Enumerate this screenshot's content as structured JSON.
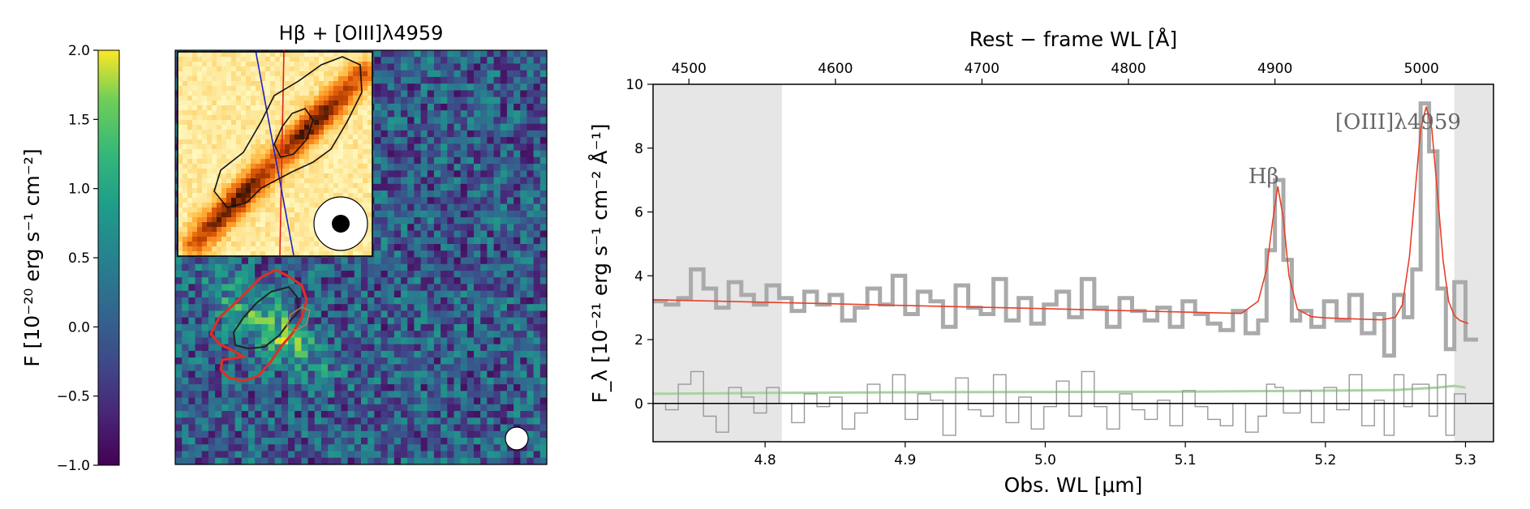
{
  "colorbar": {
    "label": "F [10⁻²⁰ erg s⁻¹ cm⁻²]",
    "range": [
      -1.0,
      2.0
    ],
    "ticks": [
      "2.0",
      "1.5",
      "1.0",
      "0.5",
      "0.0",
      "−0.5",
      "−1.0"
    ],
    "tick_values": [
      2.0,
      1.5,
      1.0,
      0.5,
      0.0,
      -0.5,
      -1.0
    ],
    "colormap": "viridis"
  },
  "map_panel": {
    "title": "Hβ + [OIII]λ4959",
    "inset_colormap": "YlOrBr",
    "contour_colors": {
      "outer": "#e03020",
      "inner": "#222222"
    },
    "slit_colors": {
      "red": "#e02020",
      "blue": "#2020d0"
    }
  },
  "chart_data": {
    "type": "line",
    "title": "",
    "xlabel": "Obs. WL [μm]",
    "ylabel": "F_λ [10⁻²¹ erg s⁻¹ cm⁻² Å⁻¹]",
    "top_xlabel": "Rest − frame WL [Å]",
    "xlim": [
      4.72,
      5.32
    ],
    "ylim": [
      -1.2,
      10
    ],
    "x_ticks": [
      4.8,
      4.9,
      5.0,
      5.1,
      5.2,
      5.3
    ],
    "x_tick_labels": [
      "4.8",
      "4.9",
      "5.0",
      "5.1",
      "5.2",
      "5.3"
    ],
    "y_ticks": [
      0,
      2,
      4,
      6,
      8,
      10
    ],
    "y_tick_labels": [
      "0",
      "2",
      "4",
      "6",
      "8",
      "10"
    ],
    "top_ticks_obs": [
      4.7456,
      4.8502,
      4.9548,
      5.0594,
      5.164,
      5.2686,
      5.3209
    ],
    "top_tick_labels": [
      "4500",
      "4600",
      "4700",
      "4800",
      "4900",
      "5000"
    ],
    "shaded_ranges": [
      [
        4.72,
        4.812
      ],
      [
        5.292,
        5.32
      ]
    ],
    "annotations": [
      {
        "text": "Hβ",
        "x": 5.145,
        "y": 6.9
      },
      {
        "text": "[OIII]λ4959",
        "x": 5.207,
        "y": 8.6
      }
    ],
    "zero_line": 0,
    "series": [
      {
        "name": "spectrum",
        "color": "#aaaaaa",
        "style": "steps",
        "x": [
          4.72,
          4.729,
          4.738,
          4.747,
          4.756,
          4.765,
          4.774,
          4.783,
          4.792,
          4.801,
          4.81,
          4.819,
          4.828,
          4.837,
          4.846,
          4.855,
          4.864,
          4.873,
          4.882,
          4.891,
          4.9,
          4.909,
          4.918,
          4.927,
          4.936,
          4.945,
          4.954,
          4.963,
          4.972,
          4.981,
          4.99,
          4.999,
          5.008,
          5.017,
          5.026,
          5.035,
          5.044,
          5.053,
          5.062,
          5.071,
          5.08,
          5.089,
          5.098,
          5.107,
          5.116,
          5.125,
          5.134,
          5.143,
          5.152,
          5.158,
          5.164,
          5.17,
          5.176,
          5.182,
          5.19,
          5.199,
          5.208,
          5.217,
          5.226,
          5.235,
          5.242,
          5.249,
          5.256,
          5.262,
          5.268,
          5.274,
          5.28,
          5.286,
          5.292,
          5.3
        ],
        "values": [
          3.2,
          3.1,
          3.3,
          4.2,
          3.6,
          3.0,
          3.8,
          3.4,
          3.1,
          3.7,
          3.3,
          2.9,
          3.5,
          3.1,
          3.4,
          2.6,
          3.0,
          3.6,
          3.1,
          4.0,
          2.8,
          3.5,
          3.2,
          2.4,
          3.7,
          3.0,
          2.8,
          3.9,
          2.6,
          3.3,
          2.5,
          3.1,
          3.5,
          2.7,
          3.9,
          3.0,
          2.4,
          3.3,
          2.9,
          2.6,
          3.0,
          2.4,
          3.2,
          2.8,
          2.5,
          2.3,
          2.9,
          2.2,
          2.6,
          4.8,
          7.0,
          4.5,
          2.6,
          2.9,
          2.4,
          3.2,
          2.6,
          3.4,
          2.2,
          2.8,
          1.5,
          3.4,
          2.7,
          4.2,
          9.4,
          7.9,
          3.6,
          1.7,
          3.8,
          2.0
        ]
      },
      {
        "name": "model",
        "color": "#e8402a",
        "style": "line",
        "x": [
          4.72,
          4.8,
          4.9,
          5.0,
          5.1,
          5.14,
          5.152,
          5.158,
          5.162,
          5.166,
          5.17,
          5.174,
          5.18,
          5.19,
          5.2,
          5.22,
          5.24,
          5.25,
          5.255,
          5.26,
          5.264,
          5.268,
          5.272,
          5.276,
          5.28,
          5.284,
          5.288,
          5.292,
          5.296,
          5.302
        ],
        "values": [
          3.25,
          3.17,
          3.07,
          2.97,
          2.86,
          2.82,
          3.2,
          4.2,
          5.6,
          6.8,
          5.8,
          4.0,
          2.95,
          2.72,
          2.68,
          2.65,
          2.62,
          2.7,
          3.1,
          4.6,
          6.6,
          8.6,
          9.3,
          8.6,
          6.6,
          4.5,
          3.2,
          2.75,
          2.6,
          2.5
        ]
      },
      {
        "name": "residual",
        "color": "#999999",
        "style": "steps",
        "x": [
          4.72,
          4.729,
          4.738,
          4.747,
          4.756,
          4.765,
          4.774,
          4.783,
          4.792,
          4.801,
          4.81,
          4.819,
          4.828,
          4.837,
          4.846,
          4.855,
          4.864,
          4.873,
          4.882,
          4.891,
          4.9,
          4.909,
          4.918,
          4.927,
          4.936,
          4.945,
          4.954,
          4.963,
          4.972,
          4.981,
          4.99,
          4.999,
          5.008,
          5.017,
          5.026,
          5.035,
          5.044,
          5.053,
          5.062,
          5.071,
          5.08,
          5.089,
          5.098,
          5.107,
          5.116,
          5.125,
          5.134,
          5.143,
          5.152,
          5.158,
          5.164,
          5.17,
          5.176,
          5.182,
          5.19,
          5.199,
          5.208,
          5.217,
          5.226,
          5.235,
          5.242,
          5.249,
          5.256,
          5.262,
          5.268,
          5.274,
          5.28,
          5.286,
          5.292,
          5.3
        ],
        "values": [
          0.0,
          -0.2,
          0.6,
          1.0,
          -0.4,
          -0.9,
          0.5,
          0.2,
          -0.3,
          0.5,
          0.0,
          -0.6,
          0.3,
          -0.1,
          0.2,
          -0.8,
          -0.3,
          0.6,
          0.0,
          0.9,
          -0.5,
          0.3,
          0.1,
          -1.0,
          0.8,
          -0.2,
          -0.4,
          0.9,
          -0.6,
          0.2,
          -0.8,
          -0.1,
          0.7,
          -0.4,
          1.0,
          -0.1,
          -0.8,
          0.3,
          -0.2,
          -0.5,
          0.1,
          -0.7,
          0.4,
          -0.1,
          -0.5,
          -0.7,
          0.0,
          -0.9,
          -0.4,
          0.6,
          0.5,
          -0.3,
          -0.3,
          0.4,
          -0.6,
          0.5,
          -0.2,
          0.9,
          -0.7,
          0.1,
          -1.0,
          0.9,
          -0.1,
          0.6,
          0.6,
          -0.4,
          0.9,
          -1.0,
          0.3,
          0.0
        ]
      },
      {
        "name": "error",
        "color": "#a8d4a0",
        "style": "line",
        "x": [
          4.72,
          4.8,
          4.9,
          5.0,
          5.1,
          5.2,
          5.25,
          5.28,
          5.292,
          5.3
        ],
        "values": [
          0.3,
          0.33,
          0.35,
          0.36,
          0.37,
          0.4,
          0.42,
          0.5,
          0.55,
          0.5
        ]
      }
    ]
  }
}
